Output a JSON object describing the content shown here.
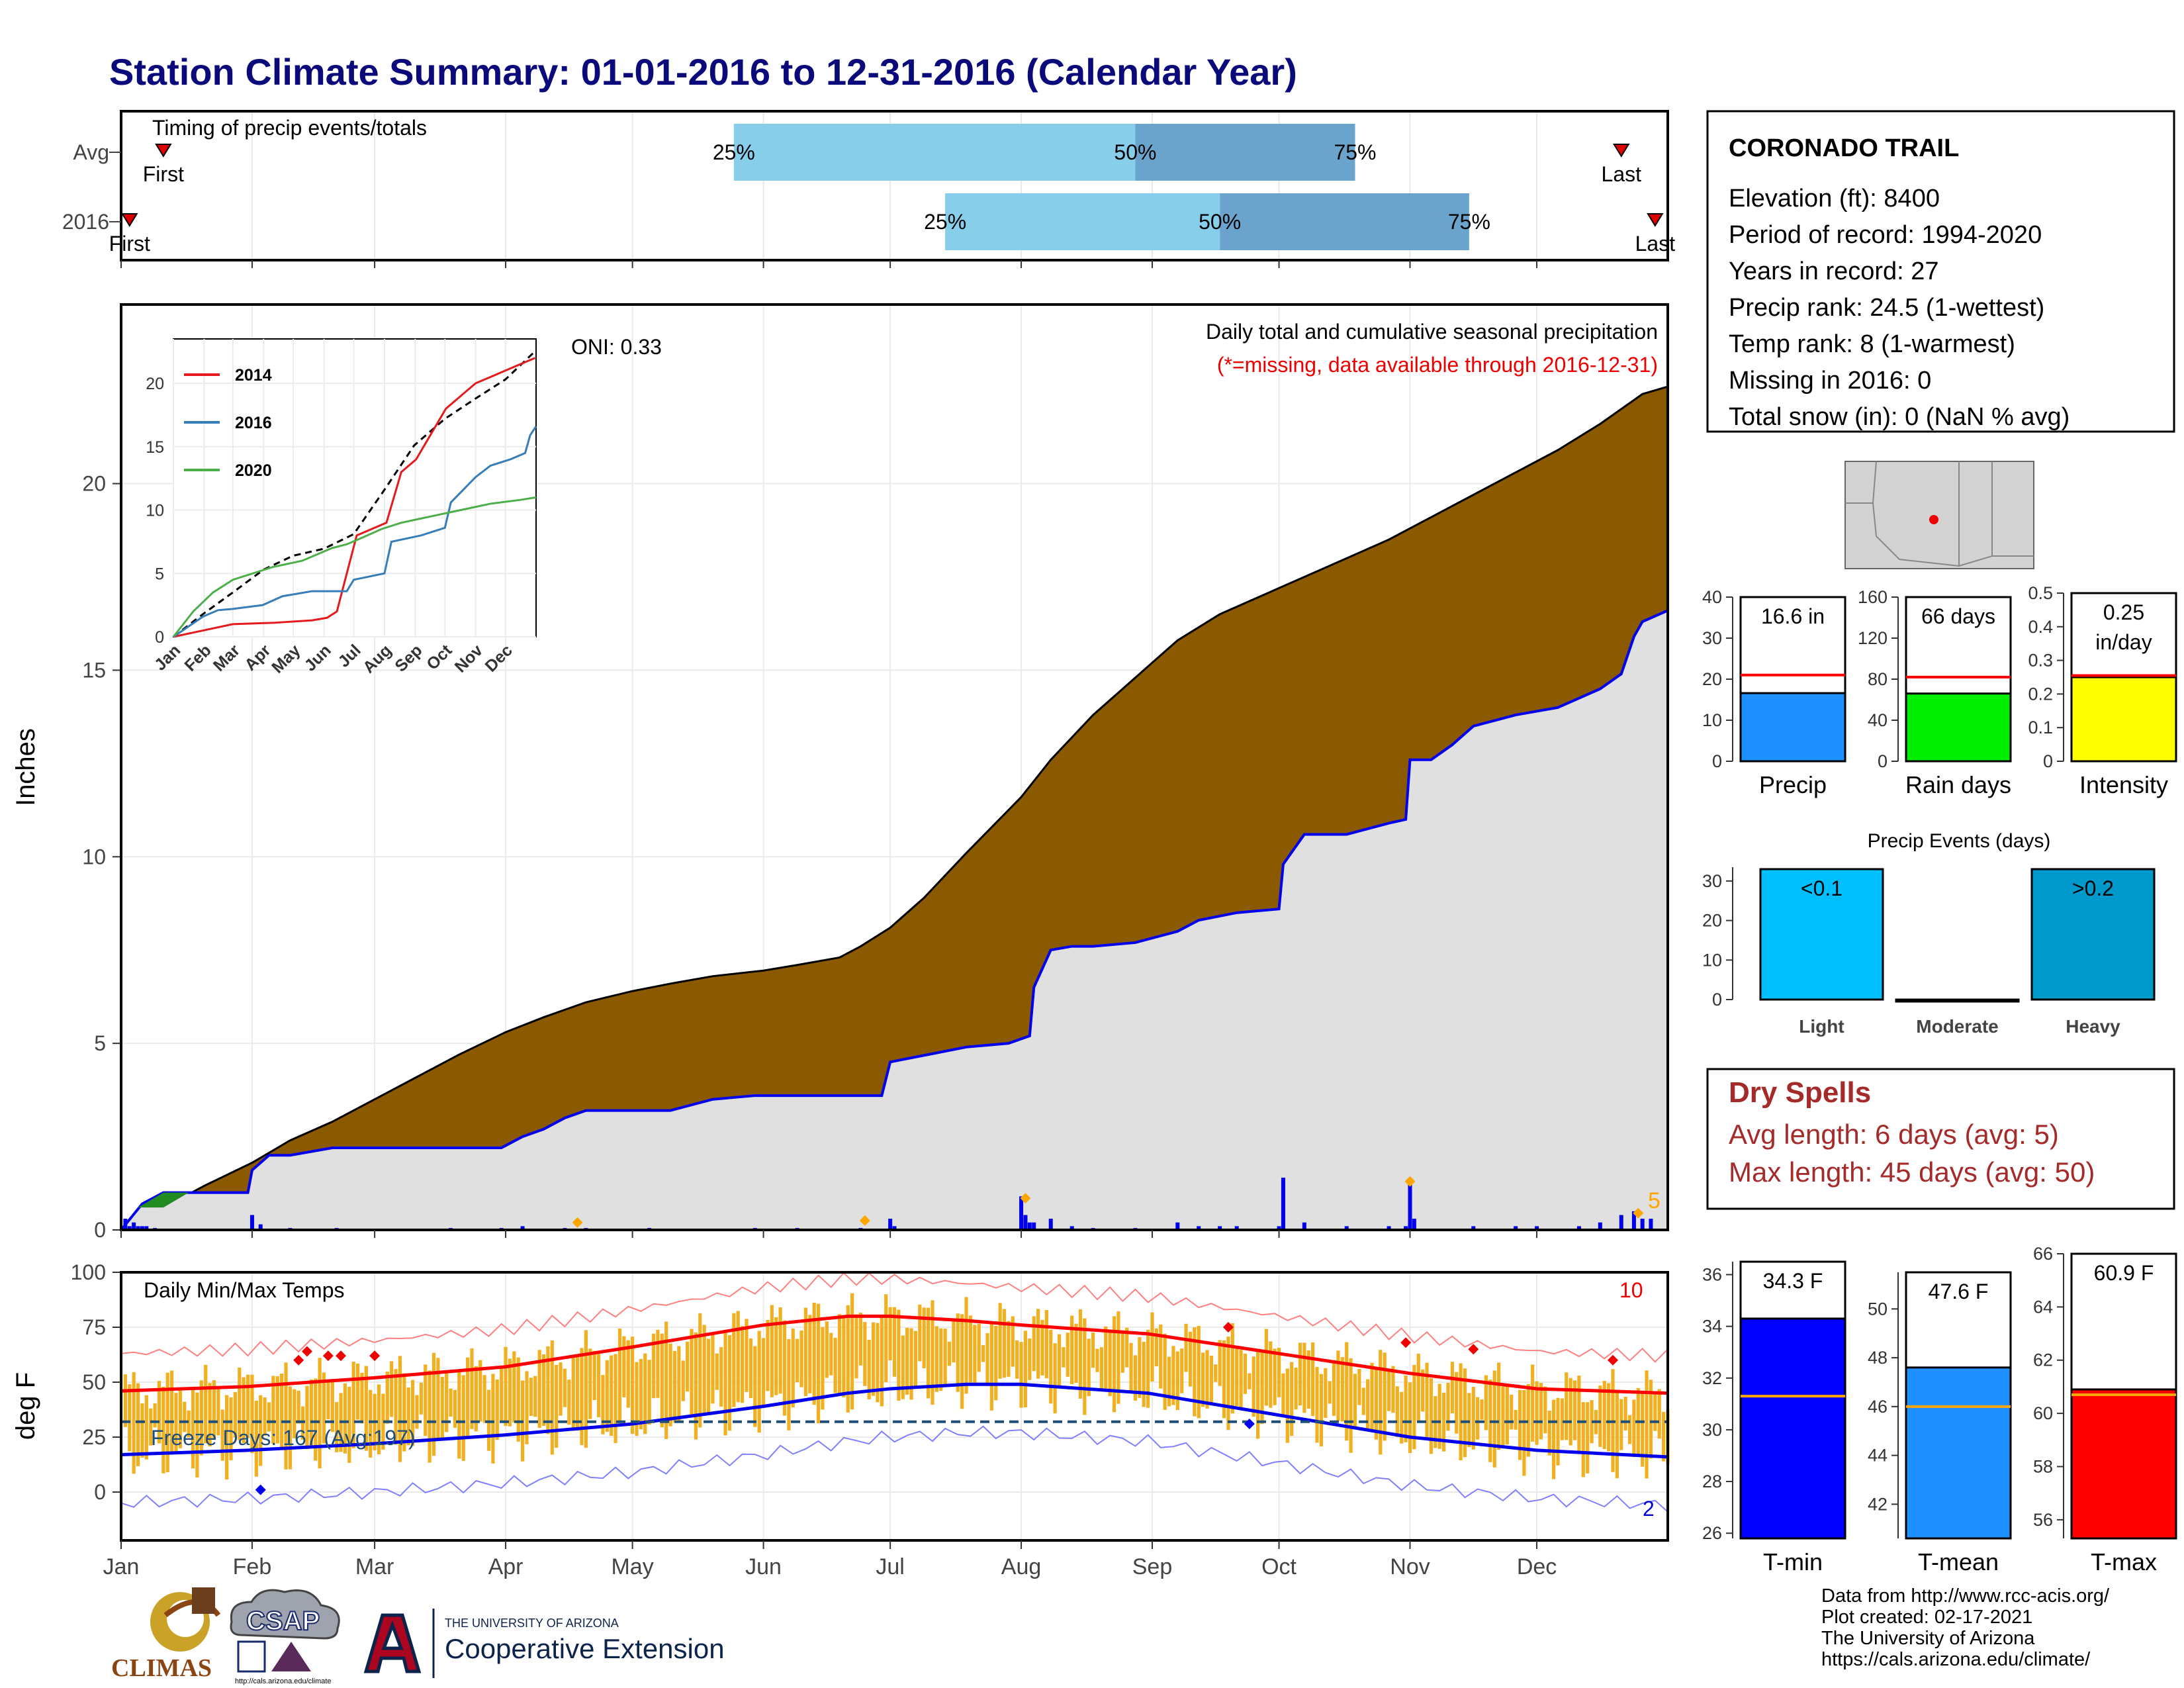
{
  "title": "Station Climate Summary: 01-01-2016 to 12-31-2016 (Calendar Year)",
  "colors": {
    "title": "#0a0a7a",
    "cum_fill": "#8B5A00",
    "obs_line": "#0000ee",
    "normal_fill": "#e0e0e0",
    "temp_bar": "#f0b020",
    "tmax_norm": "#ff0000",
    "tmin_norm": "#0000ee",
    "q_light": "#87ceeb",
    "q_dark": "#6aa4cc",
    "precip": "#1e90ff",
    "raindays": "#00ee00",
    "intensity": "#ffff00",
    "light": "#00bfff",
    "heavy": "#0099cc",
    "tmin": "#0000ff",
    "tmean": "#1e90ff",
    "tmax": "#ff0000",
    "dry": "#a52a2a",
    "marker": "#ffa500"
  },
  "timing": {
    "label": "Timing of precip events/totals",
    "rows": [
      {
        "name": "Avg",
        "first": "First",
        "last": "Last",
        "q25": 145,
        "q50": 240,
        "q75": 292,
        "first_doy": 10,
        "last_doy": 355
      },
      {
        "name": "2016",
        "first": "First",
        "last": "Last",
        "q25": 195,
        "q50": 260,
        "q75": 319,
        "first_doy": 2,
        "last_doy": 363
      }
    ],
    "q_labels": [
      "25%",
      "50%",
      "75%"
    ]
  },
  "precip_panel": {
    "ylabel": "Inches",
    "oni": "ONI: 0.33",
    "subtitle": "Daily total and cumulative seasonal precipitation",
    "missing_note": "(*=missing, data available through 2016-12-31)",
    "yticks": [
      0,
      5,
      10,
      15,
      20
    ],
    "ylim": [
      0,
      24.8
    ],
    "corner_count": "5",
    "normal_cum_x": [
      0,
      10,
      20,
      31,
      40,
      50,
      60,
      70,
      80,
      91,
      100,
      110,
      121,
      130,
      140,
      152,
      160,
      170,
      175,
      182,
      190,
      200,
      213,
      220,
      230,
      243,
      250,
      260,
      274,
      280,
      290,
      300,
      305,
      310,
      320,
      330,
      340,
      350,
      360,
      366
    ],
    "normal_cum_y": [
      0,
      0.6,
      1.2,
      1.8,
      2.4,
      2.9,
      3.5,
      4.1,
      4.7,
      5.3,
      5.7,
      6.1,
      6.4,
      6.6,
      6.8,
      6.95,
      7.1,
      7.3,
      7.6,
      8.1,
      8.9,
      10.1,
      11.6,
      12.6,
      13.8,
      15.1,
      15.8,
      16.5,
      17.2,
      17.5,
      18.0,
      18.5,
      18.8,
      19.1,
      19.7,
      20.3,
      20.9,
      21.6,
      22.4,
      22.6
    ],
    "obs_cum_x": [
      0,
      5,
      10,
      20,
      30,
      31,
      35,
      40,
      45,
      50,
      60,
      80,
      90,
      95,
      100,
      105,
      110,
      130,
      140,
      150,
      165,
      175,
      180,
      182,
      200,
      210,
      215,
      216,
      220,
      225,
      230,
      240,
      250,
      255,
      264,
      274,
      275,
      280,
      290,
      300,
      304,
      305,
      310,
      315,
      320,
      330,
      340,
      350,
      355,
      358,
      360,
      366
    ],
    "obs_cum_y": [
      0,
      0.7,
      1.0,
      1.0,
      1.0,
      1.6,
      2.0,
      2.0,
      2.1,
      2.2,
      2.2,
      2.2,
      2.2,
      2.5,
      2.7,
      3.0,
      3.2,
      3.2,
      3.5,
      3.6,
      3.6,
      3.6,
      3.6,
      4.5,
      4.9,
      5.0,
      5.2,
      6.5,
      7.5,
      7.6,
      7.6,
      7.7,
      8.0,
      8.3,
      8.5,
      8.6,
      9.8,
      10.6,
      10.6,
      10.9,
      11.0,
      12.6,
      12.6,
      13.0,
      13.5,
      13.8,
      14.0,
      14.5,
      14.9,
      15.9,
      16.3,
      16.6
    ],
    "daily_x": [
      1,
      2,
      3,
      4,
      5,
      6,
      8,
      31,
      33,
      40,
      51,
      78,
      90,
      95,
      105,
      110,
      125,
      150,
      160,
      175,
      182,
      183,
      213,
      214,
      215,
      216,
      220,
      225,
      230,
      240,
      250,
      255,
      260,
      264,
      274,
      275,
      280,
      290,
      300,
      304,
      305,
      306,
      320,
      330,
      335,
      345,
      350,
      355,
      358,
      360,
      362
    ],
    "daily_y": [
      0.3,
      0.1,
      0.2,
      0.1,
      0.1,
      0.1,
      0.05,
      0.4,
      0.15,
      0.05,
      0.05,
      0.05,
      0.05,
      0.1,
      0.05,
      0.05,
      0.05,
      0.05,
      0.05,
      0.05,
      0.3,
      0.1,
      0.9,
      0.4,
      0.2,
      0.2,
      0.3,
      0.1,
      0.05,
      0.05,
      0.2,
      0.1,
      0.1,
      0.1,
      0.1,
      1.4,
      0.2,
      0.1,
      0.1,
      0.1,
      1.3,
      0.3,
      0.1,
      0.1,
      0.1,
      0.1,
      0.2,
      0.4,
      0.5,
      0.3,
      0.3
    ],
    "orange_x": [
      108,
      176,
      214,
      305,
      359
    ],
    "orange_y": [
      0.2,
      0.25,
      0.85,
      1.3,
      0.45
    ]
  },
  "inset": {
    "series": [
      {
        "name": "2014",
        "color": "#e41a1c",
        "x": [
          0,
          30,
          60,
          100,
          140,
          155,
          165,
          175,
          185,
          200,
          215,
          230,
          245,
          260,
          275,
          290,
          305,
          320,
          335,
          350,
          365
        ],
        "y": [
          0,
          0.5,
          1,
          1.1,
          1.3,
          1.5,
          2,
          5,
          8,
          8.5,
          9,
          13,
          14,
          16,
          18,
          19,
          20,
          20.5,
          21,
          21.5,
          22
        ]
      },
      {
        "name": "2016",
        "color": "#377eb8",
        "x": [
          0,
          30,
          45,
          60,
          90,
          110,
          140,
          175,
          182,
          213,
          220,
          250,
          274,
          280,
          305,
          320,
          340,
          355,
          360,
          366
        ],
        "y": [
          0,
          1.6,
          2.1,
          2.2,
          2.5,
          3.2,
          3.6,
          3.6,
          4.5,
          5.0,
          7.5,
          8.0,
          8.6,
          10.6,
          12.6,
          13.5,
          14.0,
          14.5,
          15.9,
          16.6
        ]
      },
      {
        "name": "2020",
        "color": "#4daf4a",
        "x": [
          0,
          20,
          40,
          60,
          80,
          100,
          130,
          160,
          175,
          190,
          210,
          230,
          260,
          290,
          320,
          350,
          366
        ],
        "y": [
          0,
          2,
          3.5,
          4.5,
          5,
          5.5,
          6,
          7,
          7.3,
          7.8,
          8.5,
          9,
          9.5,
          10,
          10.5,
          10.8,
          11
        ]
      }
    ],
    "normal": {
      "x": [
        0,
        30,
        60,
        91,
        121,
        152,
        182,
        213,
        243,
        274,
        305,
        335,
        366
      ],
      "y": [
        0,
        1.8,
        3.5,
        5.3,
        6.4,
        6.95,
        8.1,
        11.6,
        15.1,
        17.2,
        18.8,
        20.3,
        22.6
      ]
    },
    "yticks": [
      0,
      5,
      10,
      15,
      20
    ],
    "ylim": [
      0,
      22.6
    ],
    "months": [
      "Jan",
      "Feb",
      "Mar",
      "Apr",
      "May",
      "Jun",
      "Jul",
      "Aug",
      "Sep",
      "Oct",
      "Nov",
      "Dec"
    ]
  },
  "temp_panel": {
    "ylabel": "deg F",
    "label": "Daily Min/Max Temps",
    "freeze": "Freeze Days: 167 (Avg:197)",
    "freeze_line": 32,
    "count_top": "10",
    "count_bottom": "2",
    "yticks": [
      0,
      25,
      50,
      75,
      100
    ],
    "ylim": [
      -22,
      100
    ],
    "norm_max": {
      "x": [
        0,
        30,
        60,
        91,
        121,
        152,
        172,
        182,
        200,
        213,
        243,
        274,
        305,
        335,
        366
      ],
      "y": [
        46,
        48,
        52,
        57,
        66,
        76,
        80,
        80,
        78,
        76,
        72,
        63,
        54,
        47,
        45
      ]
    },
    "norm_min": {
      "x": [
        0,
        30,
        60,
        91,
        121,
        152,
        172,
        182,
        200,
        213,
        243,
        274,
        305,
        335,
        366
      ],
      "y": [
        17,
        19,
        22,
        26,
        31,
        39,
        45,
        47,
        49,
        49,
        45,
        35,
        25,
        19,
        16
      ]
    },
    "red_diamonds_x": [
      42,
      44,
      49,
      52,
      60,
      262,
      304,
      320,
      353
    ],
    "red_diamonds_y": [
      60,
      64,
      62,
      62,
      62,
      75,
      68,
      65,
      60
    ],
    "blue_diamonds_x": [
      33,
      267
    ],
    "blue_diamonds_y": [
      1,
      31
    ]
  },
  "months": [
    "Jan",
    "Feb",
    "Mar",
    "Apr",
    "May",
    "Jun",
    "Jul",
    "Aug",
    "Sep",
    "Oct",
    "Nov",
    "Dec"
  ],
  "month_start_doy": [
    0,
    31,
    60,
    91,
    121,
    152,
    182,
    213,
    244,
    274,
    305,
    335
  ],
  "station": {
    "name": "CORONADO TRAIL",
    "lines": [
      "Elevation (ft): 8400",
      "Period of record: 1994-2020",
      "Years in record: 27",
      "Precip rank: 24.5 (1-wettest)",
      "Temp rank: 8 (1-warmest)",
      "Missing in 2016: 0",
      "Total snow (in): 0 (NaN % avg)"
    ]
  },
  "chart_data": [
    {
      "type": "bar",
      "categories": [
        "Precip"
      ],
      "values": [
        16.6
      ],
      "normal": 21,
      "ylim": [
        0,
        40
      ],
      "yticks": [
        0,
        10,
        20,
        30,
        40
      ],
      "label": "16.6 in"
    },
    {
      "type": "bar",
      "categories": [
        "Rain days"
      ],
      "values": [
        66
      ],
      "normal": 82,
      "ylim": [
        0,
        160
      ],
      "yticks": [
        0,
        40,
        80,
        120,
        160
      ],
      "label": "66 days"
    },
    {
      "type": "bar",
      "categories": [
        "Intensity"
      ],
      "values": [
        0.25
      ],
      "normal": 0.255,
      "ylim": [
        0,
        0.5
      ],
      "yticks": [
        0.0,
        0.1,
        0.2,
        0.3,
        0.4,
        0.5
      ],
      "label": "0.25",
      "label2": "in/day"
    },
    {
      "type": "bar",
      "title": "Precip Events (days)",
      "categories": [
        "Light",
        "Moderate",
        "Heavy"
      ],
      "values": [
        33,
        0,
        33
      ],
      "value_labels": [
        "<0.1",
        "",
        ">0.2"
      ],
      "ylim": [
        0,
        33
      ],
      "yticks": [
        0,
        10,
        20,
        30
      ]
    },
    {
      "type": "bar",
      "categories": [
        "T-min"
      ],
      "values": [
        34.3
      ],
      "normal": 31.3,
      "ylim": [
        25.8,
        36.5
      ],
      "yticks": [
        26,
        28,
        30,
        32,
        34,
        36
      ],
      "label": "34.3 F"
    },
    {
      "type": "bar",
      "categories": [
        "T-mean"
      ],
      "values": [
        47.6
      ],
      "normal": 46.0,
      "ylim": [
        40.6,
        51.5
      ],
      "yticks": [
        42,
        44,
        46,
        48,
        50
      ],
      "label": "47.6 F"
    },
    {
      "type": "bar",
      "categories": [
        "T-max"
      ],
      "values": [
        60.9
      ],
      "normal": 60.7,
      "ylim": [
        55.3,
        66
      ],
      "yticks": [
        56,
        58,
        60,
        62,
        64,
        66
      ],
      "label": "60.9 F"
    }
  ],
  "dry_spells": {
    "title": "Dry Spells",
    "avg": "Avg length: 6 days (avg: 5)",
    "max": "Max length: 45 days (avg: 50)"
  },
  "footer": {
    "lines": [
      "Data from http://www.rcc-acis.org/",
      "Plot created: 02-17-2021",
      "The University of Arizona",
      "https://cals.arizona.edu/climate/"
    ]
  },
  "logos": {
    "climas": "CLIMAS",
    "csap": "CSAP",
    "csap_url": "http://cals.arizona.edu/climate",
    "ua_small": "THE UNIVERSITY OF ARIZONA",
    "ua_big": "Cooperative Extension"
  }
}
